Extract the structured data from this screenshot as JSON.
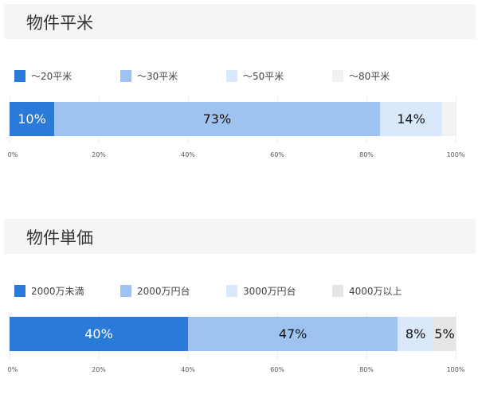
{
  "chart_data": [
    {
      "type": "bar",
      "orientation": "horizontal-stacked",
      "title": "物件平米",
      "categories": [
        "〜20平米",
        "〜30平米",
        "〜50平米",
        "〜80平米"
      ],
      "values": [
        10,
        73,
        14,
        3
      ],
      "labels": [
        "10%",
        "73%",
        "14%",
        ""
      ],
      "colors": [
        "#2a7ad9",
        "#9fc3f0",
        "#d9e8fa",
        "#f2f2f2"
      ],
      "label_colors": [
        "#ffffff",
        "#111111",
        "#111111",
        "#111111"
      ],
      "xlim": [
        0,
        100
      ],
      "ticks": [
        "0%",
        "20%",
        "40%",
        "60%",
        "80%",
        "100%"
      ],
      "grid": true,
      "legend": "top"
    },
    {
      "type": "bar",
      "orientation": "horizontal-stacked",
      "title": "物件単価",
      "categories": [
        "2000万未満",
        "2000万円台",
        "3000万円台",
        "4000万以上"
      ],
      "values": [
        40,
        47,
        8,
        5
      ],
      "labels": [
        "40%",
        "47%",
        "8%",
        "5%"
      ],
      "colors": [
        "#2a7ad9",
        "#9fc3f0",
        "#d9e8fa",
        "#e6e6e6"
      ],
      "label_colors": [
        "#ffffff",
        "#111111",
        "#111111",
        "#111111"
      ],
      "xlim": [
        0,
        100
      ],
      "ticks": [
        "0%",
        "20%",
        "40%",
        "60%",
        "80%",
        "100%"
      ],
      "grid": true,
      "legend": "top"
    }
  ]
}
